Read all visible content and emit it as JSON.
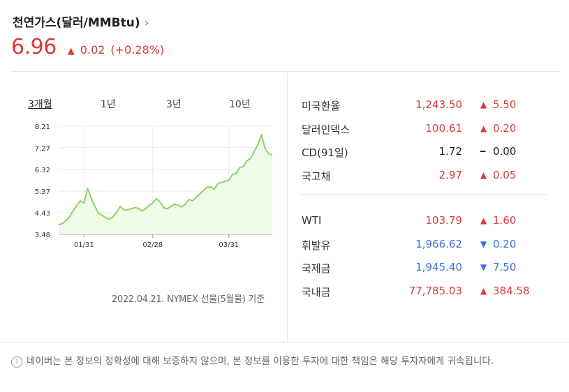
{
  "header": {
    "title": "천연가스(달러/MMBtu)",
    "chevron": "›",
    "price": "6.96",
    "change_icon": "▲",
    "change": "0.02",
    "change_pct": "(+0.28%)"
  },
  "tabs": [
    {
      "label": "3개월",
      "active": true
    },
    {
      "label": "1년",
      "active": false
    },
    {
      "label": "3년",
      "active": false
    },
    {
      "label": "10년",
      "active": false
    }
  ],
  "source_note": "2022.04.21. NYMEX 선물(5월물) 기준",
  "rates_group1": [
    {
      "name": "미국환율",
      "value": "1,243.50",
      "direction": "up",
      "arrow": "▲",
      "change": "5.50"
    },
    {
      "name": "달러인덱스",
      "value": "100.61",
      "direction": "up",
      "arrow": "▲",
      "change": "0.20"
    },
    {
      "name": "CD(91일)",
      "value": "1.72",
      "direction": "flat",
      "arrow": "━",
      "change": "0.00"
    },
    {
      "name": "국고채",
      "value": "2.97",
      "direction": "up",
      "arrow": "▲",
      "change": "0.05"
    }
  ],
  "rates_group2": [
    {
      "name": "WTI",
      "value": "103.79",
      "direction": "up",
      "arrow": "▲",
      "change": "1.60"
    },
    {
      "name": "휘발유",
      "value": "1,966.62",
      "direction": "down",
      "arrow": "▼",
      "change": "0.20"
    },
    {
      "name": "국제금",
      "value": "1,945.40",
      "direction": "down",
      "arrow": "▼",
      "change": "7.50"
    },
    {
      "name": "국내금",
      "value": "77,785.03",
      "direction": "up",
      "arrow": "▲",
      "change": "384.58"
    }
  ],
  "notice": {
    "icon": "i",
    "text": "네이버는 본 정보의 정확성에 대해 보증하지 않으며, 본 정보를 이용한 투자에 대한 책임은 해당 투자자에게 귀속됩니다."
  },
  "colors": {
    "up": "#d63a3a",
    "down": "#3d6fe0",
    "line": "#8fd16a",
    "fill": "#eefbe6"
  },
  "chart_data": {
    "type": "area",
    "title": "",
    "xlabel": "",
    "ylabel": "",
    "yticks": [
      "8.21",
      "7.27",
      "6.32",
      "5.37",
      "4.43",
      "3.48"
    ],
    "ytick_values": [
      8.21,
      7.27,
      6.32,
      5.37,
      4.43,
      3.48
    ],
    "xticks": [
      {
        "label": "01/31",
        "index": 7
      },
      {
        "label": "02/28",
        "index": 26
      },
      {
        "label": "03/31",
        "index": 47
      }
    ],
    "ylim": [
      3.48,
      8.21
    ],
    "grid": true,
    "series": [
      {
        "values": [
          3.9,
          3.95,
          4.08,
          4.25,
          4.5,
          4.75,
          4.95,
          4.85,
          5.5,
          5.05,
          4.72,
          4.4,
          4.32,
          4.2,
          4.15,
          4.25,
          4.45,
          4.7,
          4.55,
          4.55,
          4.6,
          4.65,
          4.62,
          4.5,
          4.6,
          4.75,
          4.85,
          5.05,
          4.9,
          4.65,
          4.6,
          4.7,
          4.8,
          4.75,
          4.68,
          4.8,
          5.0,
          4.95,
          5.1,
          5.25,
          5.4,
          5.55,
          5.55,
          5.45,
          5.7,
          5.75,
          5.8,
          5.85,
          6.1,
          6.15,
          6.4,
          6.45,
          6.7,
          6.8,
          7.1,
          7.4,
          7.85,
          7.25,
          7.0,
          6.96
        ]
      }
    ]
  }
}
